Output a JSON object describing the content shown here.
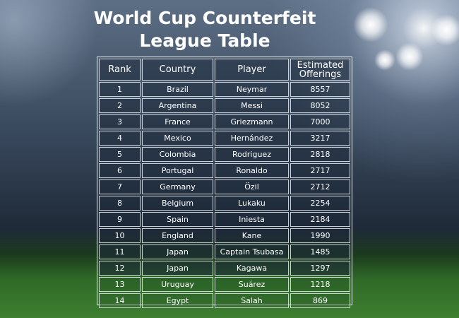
{
  "title_lines": [
    "World Cup Counterfeit",
    "League Table"
  ],
  "columns": [
    "Rank",
    "Country",
    "Player",
    "Estimated Offerings"
  ],
  "rows": [
    [
      "1",
      "Brazil",
      "Neymar",
      "8557"
    ],
    [
      "2",
      "Argentina",
      "Messi",
      "8052"
    ],
    [
      "3",
      "France",
      "Griezmann",
      "7000"
    ],
    [
      "4",
      "Mexico",
      "Hernández",
      "3217"
    ],
    [
      "5",
      "Colombia",
      "Rodriguez",
      "2818"
    ],
    [
      "6",
      "Portugal",
      "Ronaldo",
      "2717"
    ],
    [
      "7",
      "Germany",
      "Özil",
      "2712"
    ],
    [
      "8",
      "Belgium",
      "Lukaku",
      "2254"
    ],
    [
      "9",
      "Spain",
      "Iniesta",
      "2184"
    ],
    [
      "10",
      "England",
      "Kane",
      "1990"
    ],
    [
      "11",
      "Japan",
      "Captain Tsubasa",
      "1485"
    ],
    [
      "12",
      "Japan",
      "Kagawa",
      "1297"
    ],
    [
      "13",
      "Uruguay",
      "Suárez",
      "1218"
    ],
    [
      "14",
      "Egypt",
      "Salah",
      "869"
    ]
  ],
  "chart_data": {
    "type": "table",
    "title": "World Cup Counterfeit League Table",
    "columns": [
      "Rank",
      "Country",
      "Player",
      "Estimated Offerings"
    ]
  }
}
